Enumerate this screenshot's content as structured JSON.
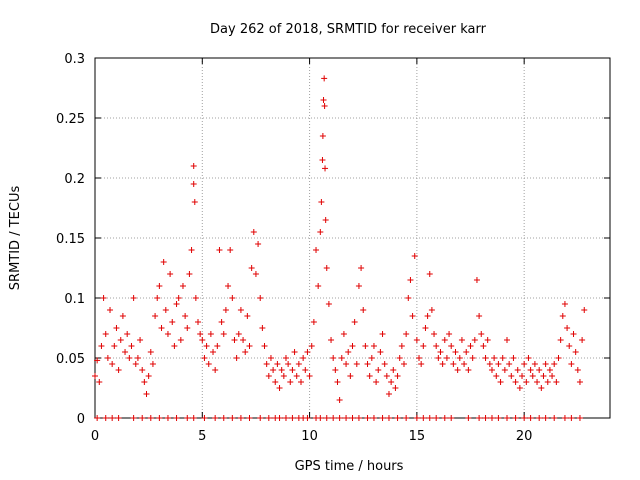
{
  "chart_data": {
    "type": "scatter",
    "title": "Day 262 of 2018, SRMTID for receiver karr",
    "xlabel": "GPS time / hours",
    "ylabel": "SRMTID / TECUs",
    "xlim": [
      0,
      24
    ],
    "ylim": [
      0,
      0.3
    ],
    "grid": true,
    "marker": "+",
    "series_color": "#e00000",
    "x_ticks": [
      {
        "value": 0,
        "label": "0"
      },
      {
        "value": 5,
        "label": "5"
      },
      {
        "value": 10,
        "label": "10"
      },
      {
        "value": 15,
        "label": "15"
      },
      {
        "value": 20,
        "label": "20"
      }
    ],
    "y_ticks": [
      {
        "value": 0,
        "label": "0"
      },
      {
        "value": 0.05,
        "label": "0.05"
      },
      {
        "value": 0.1,
        "label": "0.1"
      },
      {
        "value": 0.15,
        "label": "0.15"
      },
      {
        "value": 0.2,
        "label": "0.2"
      },
      {
        "value": 0.25,
        "label": "0.25"
      },
      {
        "value": 0.3,
        "label": "0.3"
      }
    ],
    "series": [
      {
        "name": "SRMTID",
        "points": [
          [
            0.0,
            0.035
          ],
          [
            0.1,
            0.048
          ],
          [
            0.2,
            0.03
          ],
          [
            0.3,
            0.06
          ],
          [
            0.4,
            0.1
          ],
          [
            0.5,
            0.07
          ],
          [
            0.6,
            0.05
          ],
          [
            0.7,
            0.09
          ],
          [
            0.8,
            0.045
          ],
          [
            0.9,
            0.06
          ],
          [
            1.0,
            0.075
          ],
          [
            1.1,
            0.04
          ],
          [
            1.2,
            0.065
          ],
          [
            1.3,
            0.085
          ],
          [
            1.4,
            0.055
          ],
          [
            1.5,
            0.07
          ],
          [
            1.6,
            0.05
          ],
          [
            1.7,
            0.06
          ],
          [
            1.8,
            0.1
          ],
          [
            1.9,
            0.045
          ],
          [
            2.0,
            0.05
          ],
          [
            2.1,
            0.065
          ],
          [
            2.2,
            0.04
          ],
          [
            2.3,
            0.03
          ],
          [
            2.4,
            0.02
          ],
          [
            2.5,
            0.035
          ],
          [
            2.6,
            0.055
          ],
          [
            2.7,
            0.045
          ],
          [
            2.8,
            0.085
          ],
          [
            2.9,
            0.1
          ],
          [
            3.0,
            0.11
          ],
          [
            3.1,
            0.075
          ],
          [
            3.2,
            0.13
          ],
          [
            3.3,
            0.09
          ],
          [
            3.4,
            0.07
          ],
          [
            3.5,
            0.12
          ],
          [
            3.6,
            0.08
          ],
          [
            3.7,
            0.06
          ],
          [
            3.8,
            0.095
          ],
          [
            3.9,
            0.1
          ],
          [
            4.0,
            0.065
          ],
          [
            4.1,
            0.11
          ],
          [
            4.2,
            0.085
          ],
          [
            4.3,
            0.075
          ],
          [
            4.4,
            0.12
          ],
          [
            4.5,
            0.14
          ],
          [
            4.6,
            0.21
          ],
          [
            4.6,
            0.195
          ],
          [
            4.65,
            0.18
          ],
          [
            4.7,
            0.1
          ],
          [
            4.8,
            0.08
          ],
          [
            4.9,
            0.07
          ],
          [
            5.0,
            0.065
          ],
          [
            5.1,
            0.05
          ],
          [
            5.2,
            0.06
          ],
          [
            5.3,
            0.045
          ],
          [
            5.4,
            0.07
          ],
          [
            5.5,
            0.055
          ],
          [
            5.6,
            0.04
          ],
          [
            5.7,
            0.06
          ],
          [
            5.8,
            0.14
          ],
          [
            5.9,
            0.08
          ],
          [
            6.0,
            0.07
          ],
          [
            6.1,
            0.09
          ],
          [
            6.2,
            0.11
          ],
          [
            6.3,
            0.14
          ],
          [
            6.4,
            0.1
          ],
          [
            6.5,
            0.065
          ],
          [
            6.6,
            0.05
          ],
          [
            6.7,
            0.07
          ],
          [
            6.8,
            0.09
          ],
          [
            6.9,
            0.065
          ],
          [
            7.0,
            0.055
          ],
          [
            7.1,
            0.085
          ],
          [
            7.2,
            0.06
          ],
          [
            7.3,
            0.125
          ],
          [
            7.4,
            0.155
          ],
          [
            7.5,
            0.12
          ],
          [
            7.6,
            0.145
          ],
          [
            7.7,
            0.1
          ],
          [
            7.8,
            0.075
          ],
          [
            7.9,
            0.06
          ],
          [
            8.0,
            0.045
          ],
          [
            8.1,
            0.035
          ],
          [
            8.2,
            0.05
          ],
          [
            8.3,
            0.04
          ],
          [
            8.4,
            0.03
          ],
          [
            8.5,
            0.045
          ],
          [
            8.6,
            0.025
          ],
          [
            8.7,
            0.04
          ],
          [
            8.8,
            0.035
          ],
          [
            8.9,
            0.05
          ],
          [
            9.0,
            0.045
          ],
          [
            9.1,
            0.03
          ],
          [
            9.2,
            0.04
          ],
          [
            9.3,
            0.055
          ],
          [
            9.4,
            0.035
          ],
          [
            9.5,
            0.045
          ],
          [
            9.6,
            0.03
          ],
          [
            9.7,
            0.05
          ],
          [
            9.8,
            0.04
          ],
          [
            9.9,
            0.055
          ],
          [
            10.0,
            0.035
          ],
          [
            10.1,
            0.06
          ],
          [
            10.2,
            0.08
          ],
          [
            10.3,
            0.14
          ],
          [
            10.4,
            0.11
          ],
          [
            10.5,
            0.155
          ],
          [
            10.55,
            0.18
          ],
          [
            10.6,
            0.215
          ],
          [
            10.62,
            0.235
          ],
          [
            10.65,
            0.265
          ],
          [
            10.68,
            0.283
          ],
          [
            10.7,
            0.26
          ],
          [
            10.72,
            0.208
          ],
          [
            10.75,
            0.165
          ],
          [
            10.8,
            0.125
          ],
          [
            10.9,
            0.095
          ],
          [
            11.0,
            0.065
          ],
          [
            11.1,
            0.05
          ],
          [
            11.2,
            0.04
          ],
          [
            11.3,
            0.03
          ],
          [
            11.4,
            0.015
          ],
          [
            11.5,
            0.05
          ],
          [
            11.6,
            0.07
          ],
          [
            11.7,
            0.045
          ],
          [
            11.8,
            0.055
          ],
          [
            11.9,
            0.035
          ],
          [
            12.0,
            0.06
          ],
          [
            12.1,
            0.08
          ],
          [
            12.2,
            0.045
          ],
          [
            12.3,
            0.11
          ],
          [
            12.4,
            0.125
          ],
          [
            12.5,
            0.09
          ],
          [
            12.6,
            0.06
          ],
          [
            12.7,
            0.045
          ],
          [
            12.8,
            0.035
          ],
          [
            12.9,
            0.05
          ],
          [
            13.0,
            0.06
          ],
          [
            13.1,
            0.03
          ],
          [
            13.2,
            0.04
          ],
          [
            13.3,
            0.055
          ],
          [
            13.4,
            0.07
          ],
          [
            13.5,
            0.045
          ],
          [
            13.6,
            0.035
          ],
          [
            13.7,
            0.02
          ],
          [
            13.8,
            0.03
          ],
          [
            13.9,
            0.04
          ],
          [
            14.0,
            0.025
          ],
          [
            14.1,
            0.035
          ],
          [
            14.2,
            0.05
          ],
          [
            14.3,
            0.06
          ],
          [
            14.4,
            0.045
          ],
          [
            14.5,
            0.07
          ],
          [
            14.6,
            0.1
          ],
          [
            14.7,
            0.115
          ],
          [
            14.8,
            0.085
          ],
          [
            14.9,
            0.135
          ],
          [
            15.0,
            0.065
          ],
          [
            15.1,
            0.05
          ],
          [
            15.2,
            0.045
          ],
          [
            15.3,
            0.06
          ],
          [
            15.4,
            0.075
          ],
          [
            15.5,
            0.085
          ],
          [
            15.6,
            0.12
          ],
          [
            15.7,
            0.09
          ],
          [
            15.8,
            0.07
          ],
          [
            15.9,
            0.06
          ],
          [
            16.0,
            0.05
          ],
          [
            16.1,
            0.055
          ],
          [
            16.2,
            0.045
          ],
          [
            16.3,
            0.065
          ],
          [
            16.4,
            0.05
          ],
          [
            16.5,
            0.07
          ],
          [
            16.6,
            0.06
          ],
          [
            16.7,
            0.045
          ],
          [
            16.8,
            0.055
          ],
          [
            16.9,
            0.04
          ],
          [
            17.0,
            0.05
          ],
          [
            17.1,
            0.065
          ],
          [
            17.2,
            0.045
          ],
          [
            17.3,
            0.055
          ],
          [
            17.4,
            0.04
          ],
          [
            17.5,
            0.06
          ],
          [
            17.6,
            0.05
          ],
          [
            17.7,
            0.065
          ],
          [
            17.8,
            0.115
          ],
          [
            17.9,
            0.085
          ],
          [
            18.0,
            0.07
          ],
          [
            18.1,
            0.06
          ],
          [
            18.2,
            0.05
          ],
          [
            18.3,
            0.065
          ],
          [
            18.4,
            0.045
          ],
          [
            18.5,
            0.04
          ],
          [
            18.6,
            0.05
          ],
          [
            18.7,
            0.035
          ],
          [
            18.8,
            0.045
          ],
          [
            18.9,
            0.03
          ],
          [
            19.0,
            0.05
          ],
          [
            19.1,
            0.04
          ],
          [
            19.2,
            0.065
          ],
          [
            19.3,
            0.045
          ],
          [
            19.4,
            0.035
          ],
          [
            19.5,
            0.05
          ],
          [
            19.6,
            0.03
          ],
          [
            19.7,
            0.04
          ],
          [
            19.8,
            0.025
          ],
          [
            19.9,
            0.035
          ],
          [
            20.0,
            0.045
          ],
          [
            20.1,
            0.03
          ],
          [
            20.2,
            0.05
          ],
          [
            20.3,
            0.04
          ],
          [
            20.4,
            0.035
          ],
          [
            20.5,
            0.045
          ],
          [
            20.6,
            0.03
          ],
          [
            20.7,
            0.04
          ],
          [
            20.8,
            0.025
          ],
          [
            20.9,
            0.035
          ],
          [
            21.0,
            0.045
          ],
          [
            21.1,
            0.03
          ],
          [
            21.2,
            0.04
          ],
          [
            21.3,
            0.035
          ],
          [
            21.4,
            0.045
          ],
          [
            21.5,
            0.03
          ],
          [
            21.6,
            0.05
          ],
          [
            21.7,
            0.065
          ],
          [
            21.8,
            0.085
          ],
          [
            21.9,
            0.095
          ],
          [
            22.0,
            0.075
          ],
          [
            22.1,
            0.06
          ],
          [
            22.2,
            0.045
          ],
          [
            22.3,
            0.07
          ],
          [
            22.4,
            0.055
          ],
          [
            22.5,
            0.04
          ],
          [
            22.6,
            0.03
          ],
          [
            22.7,
            0.065
          ],
          [
            22.8,
            0.09
          ]
        ]
      }
    ],
    "baseline_points": [
      0.1,
      0.5,
      0.8,
      1.1,
      1.8,
      2.2,
      2.6,
      3.0,
      3.4,
      3.8,
      4.3,
      4.6,
      5.1,
      5.6,
      6.0,
      6.4,
      6.8,
      7.2,
      7.7,
      8.1,
      8.4,
      8.6,
      8.9,
      9.2,
      9.5,
      9.7,
      9.9,
      10.3,
      10.5,
      10.8,
      11.1,
      11.4,
      11.7,
      12.0,
      12.3,
      12.7,
      13.0,
      13.4,
      13.7,
      14.1,
      14.5,
      15.0,
      15.3,
      15.6,
      15.9,
      16.3,
      16.6,
      17.4,
      17.9,
      18.2,
      18.5,
      18.8,
      19.2,
      19.6,
      20.0,
      20.3,
      20.7,
      21.0,
      21.4,
      21.9,
      22.2,
      22.6
    ]
  }
}
